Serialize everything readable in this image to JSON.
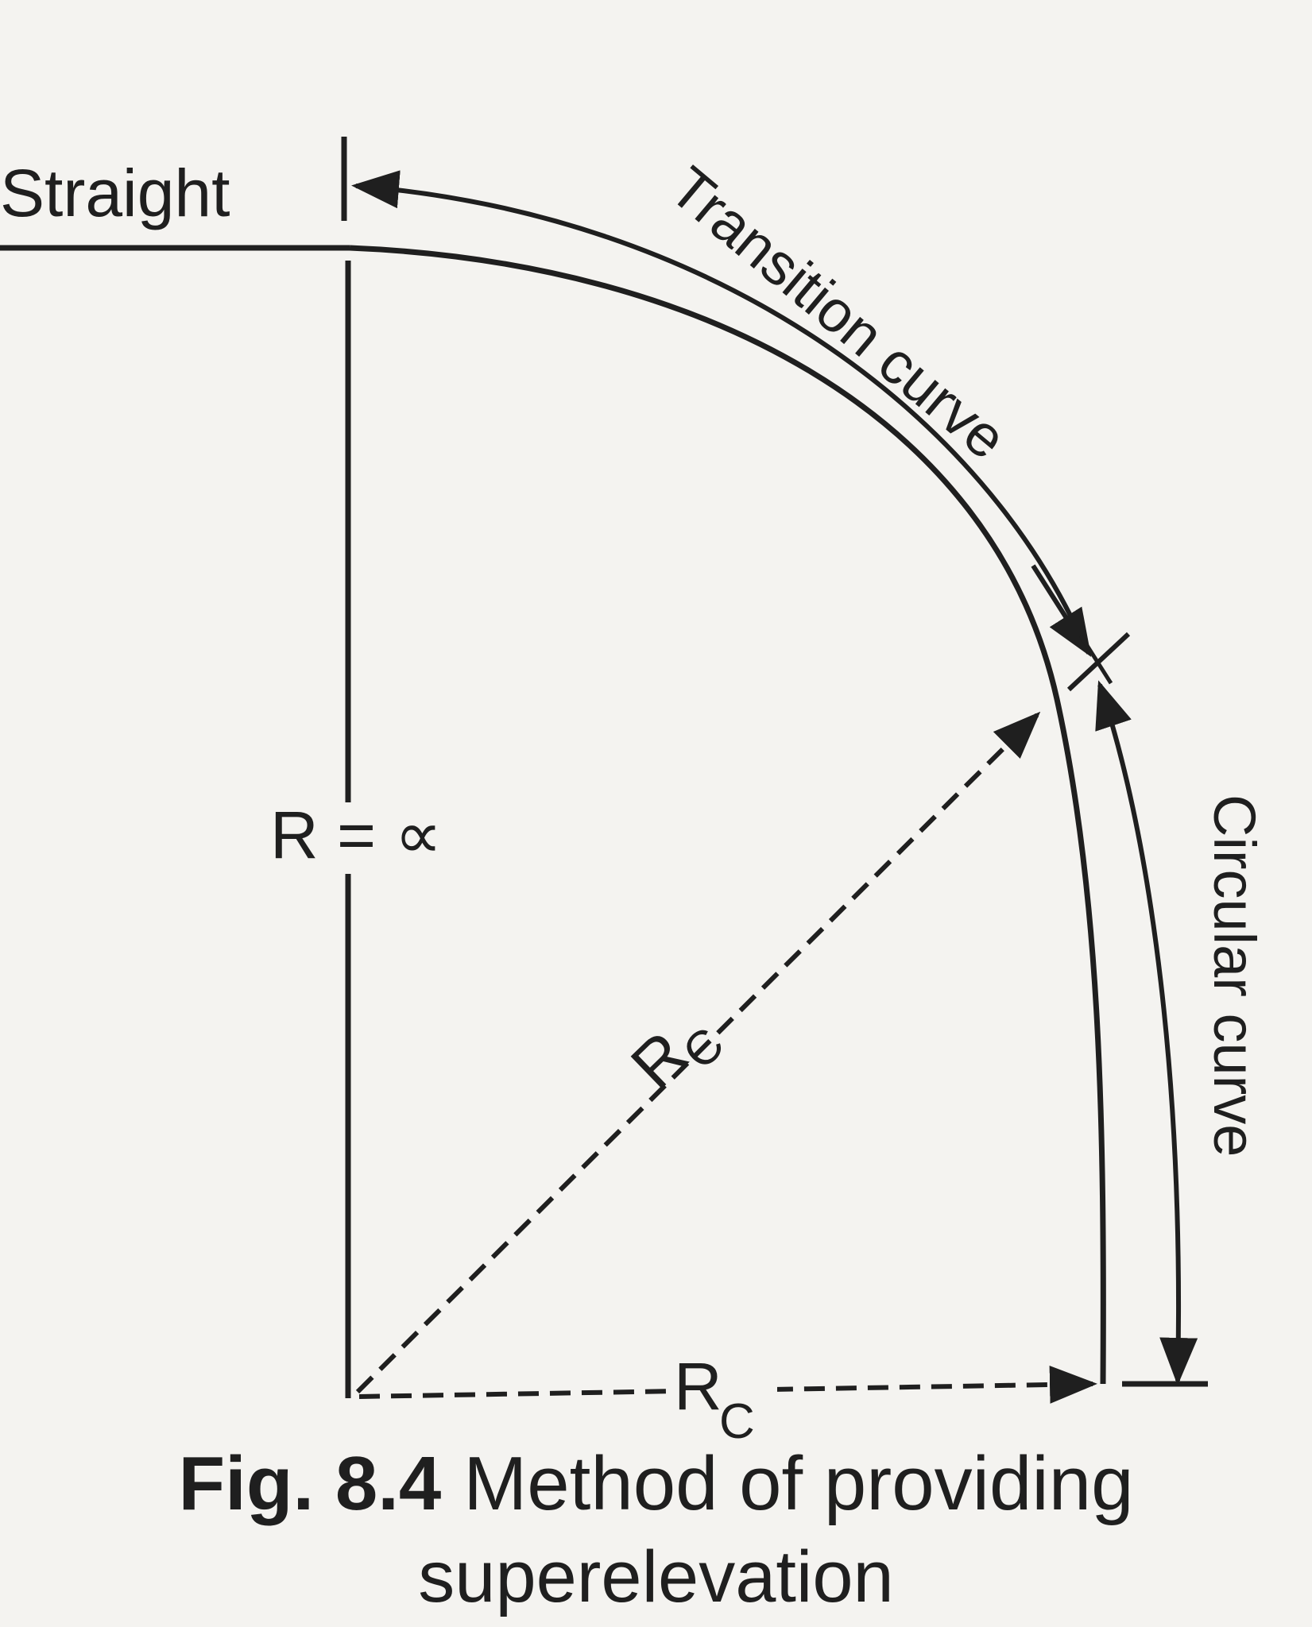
{
  "diagram": {
    "labels": {
      "straight": "Straight",
      "transition_curve": "Transition curve",
      "circular_curve": "Circular curve",
      "r_infinity": "R = ∝",
      "rc_diagonal": "R",
      "rc_diagonal_sub": "C",
      "rc_horizontal": "R",
      "rc_horizontal_sub": "C"
    }
  },
  "caption": {
    "figure_number": "Fig. 8.4",
    "line1": "Method of providing",
    "line2": "superelevation"
  }
}
